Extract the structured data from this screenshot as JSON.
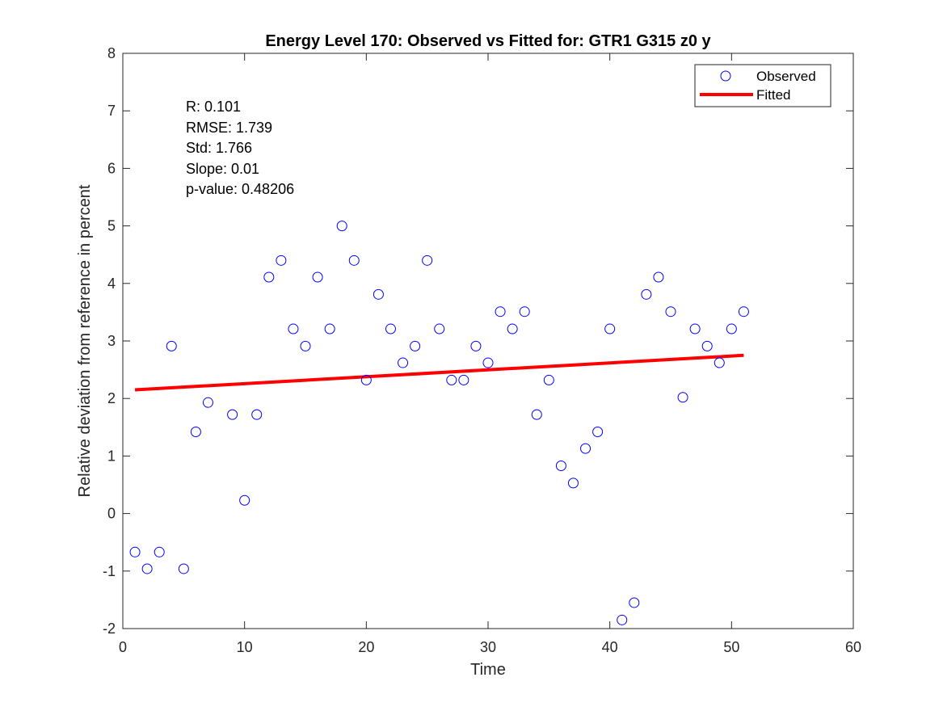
{
  "colors": {
    "observed_marker": "#0000ff",
    "fitted_line": "#ff0000",
    "axes": "#262626"
  },
  "chart_data": {
    "type": "scatter",
    "title": "Energy Level 170: Observed vs Fitted for: GTR1 G315 z0 y",
    "xlabel": "Time",
    "ylabel": "Relative deviation from reference in percent",
    "xlim": [
      0,
      60
    ],
    "ylim": [
      -2,
      8
    ],
    "xticks": [
      0,
      10,
      20,
      30,
      40,
      50,
      60
    ],
    "yticks": [
      -2,
      -1,
      0,
      1,
      2,
      3,
      4,
      5,
      6,
      7,
      8
    ],
    "grid": false,
    "legend_position": "top-right",
    "annotations": [
      "R: 0.101",
      "RMSE: 1.739",
      "Std: 1.766",
      "Slope: 0.01",
      "p-value: 0.48206"
    ],
    "series": [
      {
        "name": "Observed",
        "style": "marker-circle",
        "x": [
          1,
          2,
          3,
          4,
          5,
          6,
          7,
          9,
          10,
          11,
          12,
          13,
          14,
          15,
          16,
          17,
          18,
          19,
          20,
          21,
          22,
          23,
          24,
          25,
          26,
          27,
          28,
          29,
          30,
          31,
          32,
          33,
          34,
          35,
          36,
          37,
          38,
          39,
          40,
          41,
          42,
          43,
          44,
          45,
          46,
          47,
          48,
          49,
          50,
          51
        ],
        "y": [
          -0.67,
          -0.96,
          -0.67,
          2.91,
          -0.96,
          1.42,
          1.93,
          1.72,
          0.23,
          1.72,
          4.11,
          4.4,
          3.21,
          2.91,
          4.11,
          3.21,
          5.0,
          4.4,
          2.32,
          3.81,
          3.21,
          2.62,
          2.91,
          4.4,
          3.21,
          2.32,
          2.32,
          2.91,
          2.62,
          3.51,
          3.21,
          3.51,
          1.72,
          2.32,
          0.83,
          0.53,
          1.13,
          1.42,
          3.21,
          -1.85,
          -1.55,
          3.81,
          4.11,
          3.51,
          2.02,
          3.21,
          2.91,
          2.62,
          3.21,
          3.51
        ]
      },
      {
        "name": "Fitted",
        "style": "line",
        "x": [
          1,
          51
        ],
        "y": [
          2.15,
          2.75
        ]
      }
    ]
  }
}
